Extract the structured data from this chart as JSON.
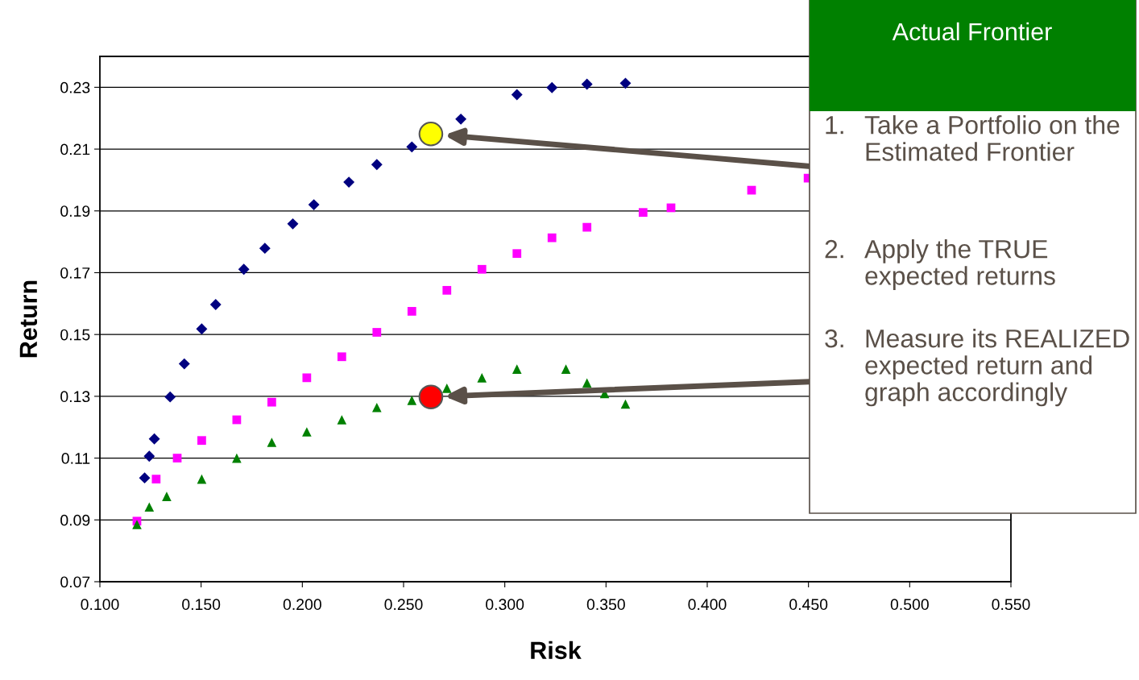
{
  "chart_data": {
    "type": "scatter",
    "xlabel": "Risk",
    "ylabel": "Return",
    "xlim": [
      0.1,
      0.55
    ],
    "ylim": [
      0.07,
      0.24
    ],
    "xticks": [
      {
        "value": 0.1,
        "label": "0.100"
      },
      {
        "value": 0.15,
        "label": "0.150"
      },
      {
        "value": 0.2,
        "label": "0.200"
      },
      {
        "value": 0.25,
        "label": "0.250"
      },
      {
        "value": 0.3,
        "label": "0.300"
      },
      {
        "value": 0.35,
        "label": "0.350"
      },
      {
        "value": 0.4,
        "label": "0.400"
      },
      {
        "value": 0.45,
        "label": "0.450"
      },
      {
        "value": 0.5,
        "label": "0.500"
      },
      {
        "value": 0.55,
        "label": "0.550"
      }
    ],
    "yticks": [
      0.07,
      0.09,
      0.11,
      0.13,
      0.15,
      0.17,
      0.19,
      0.21,
      0.23
    ],
    "grid": "y",
    "legend": false,
    "series": [
      {
        "color": "#000080",
        "marker": "diamond",
        "x": [
          0.1221,
          0.1244,
          0.1269,
          0.1347,
          0.1417,
          0.1503,
          0.1572,
          0.1711,
          0.1815,
          0.1953,
          0.2057,
          0.223,
          0.2368,
          0.2541,
          0.2783,
          0.306,
          0.3233,
          0.3406,
          0.3596
        ],
        "values": [
          0.1036,
          0.1106,
          0.1162,
          0.1298,
          0.1405,
          0.1518,
          0.1597,
          0.1711,
          0.1779,
          0.1858,
          0.192,
          0.1993,
          0.205,
          0.2107,
          0.2197,
          0.2276,
          0.2299,
          0.231,
          0.2313
        ]
      },
      {
        "color": "#ff00ff",
        "marker": "square",
        "x": [
          0.1183,
          0.1278,
          0.1382,
          0.1503,
          0.1676,
          0.1849,
          0.2022,
          0.2195,
          0.2368,
          0.2541,
          0.2714,
          0.2887,
          0.306,
          0.3233,
          0.3406,
          0.3683,
          0.3821,
          0.4219,
          0.4498
        ],
        "values": [
          0.0896,
          0.1032,
          0.11,
          0.1157,
          0.1224,
          0.1281,
          0.136,
          0.1428,
          0.1507,
          0.1575,
          0.1643,
          0.1711,
          0.1762,
          0.1813,
          0.1847,
          0.1895,
          0.191,
          0.1967,
          0.2006
        ]
      },
      {
        "color": "#008000",
        "marker": "triangle",
        "x": [
          0.1183,
          0.1244,
          0.133,
          0.1503,
          0.1676,
          0.1849,
          0.2022,
          0.2195,
          0.2368,
          0.2541,
          0.2714,
          0.2887,
          0.306,
          0.3302,
          0.3406,
          0.3493,
          0.3596
        ],
        "values": [
          0.0885,
          0.0942,
          0.0976,
          0.1032,
          0.11,
          0.1151,
          0.1185,
          0.1224,
          0.1264,
          0.1287,
          0.1326,
          0.136,
          0.1388,
          0.1388,
          0.1343,
          0.1309,
          0.1275
        ]
      },
      {
        "color": "#ffff00",
        "marker": "circle",
        "x": [
          0.2635
        ],
        "values": [
          0.2149
        ]
      },
      {
        "color": "#ff0000",
        "marker": "circle",
        "x": [
          0.2635
        ],
        "values": [
          0.1298
        ]
      }
    ],
    "annotations": [
      "Actual Frontier",
      "1.",
      "Take a Portfolio on the Estimated Frontier",
      "2.",
      "Apply the TRUE expected returns",
      "3.",
      "Measure its REALIZED expected return and graph accordingly"
    ]
  }
}
